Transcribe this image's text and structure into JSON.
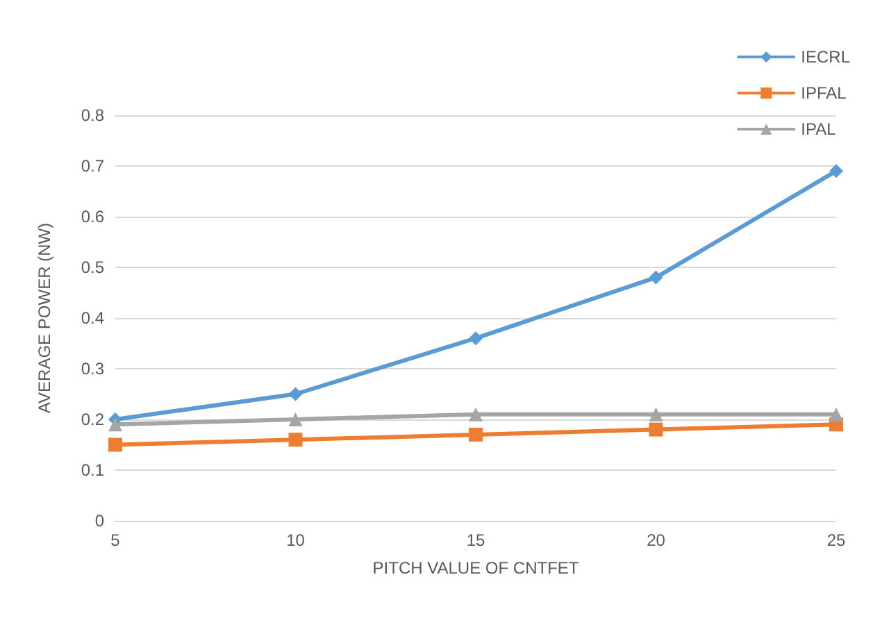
{
  "chart_data": {
    "type": "line",
    "xlabel": "PITCH VALUE OF CNTFET",
    "ylabel": "AVERAGE POWER (NW)",
    "x": [
      5,
      10,
      15,
      20,
      25
    ],
    "series": [
      {
        "name": "IECRL",
        "color": "#5b9bd5",
        "marker": "diamond",
        "values": [
          0.2,
          0.25,
          0.36,
          0.48,
          0.69
        ]
      },
      {
        "name": "IPFAL",
        "color": "#ed7d31",
        "marker": "square",
        "values": [
          0.15,
          0.16,
          0.17,
          0.18,
          0.19
        ]
      },
      {
        "name": "IPAL",
        "color": "#a5a5a5",
        "marker": "triangle",
        "values": [
          0.19,
          0.2,
          0.21,
          0.21,
          0.21
        ]
      }
    ],
    "xlim": [
      5,
      25
    ],
    "xticks": [
      5,
      10,
      15,
      20,
      25
    ],
    "ylim": [
      0,
      0.8
    ],
    "yticks": [
      0,
      0.1,
      0.2,
      0.3,
      0.4,
      0.5,
      0.6,
      0.7,
      0.8
    ],
    "grid": "y",
    "legend": "top right"
  }
}
